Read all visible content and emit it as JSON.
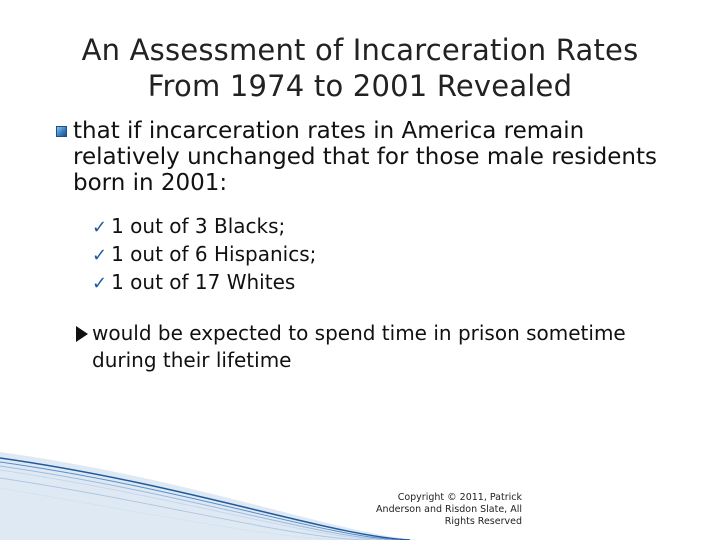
{
  "title": {
    "line1": "An Assessment of Incarceration Rates",
    "line2": "From 1974 to 2001 Revealed"
  },
  "main_bullet": {
    "text": "that if incarceration rates in America remain relatively unchanged that for those male residents born in 2001:"
  },
  "check_items": [
    "1 out of 3 Blacks;",
    "1 out of 6 Hispanics;",
    "1 out of 17 Whites"
  ],
  "check_icon": "ü",
  "arrow_item": {
    "text": "would be expected to spend time in prison sometime during their lifetime"
  },
  "copyright": {
    "text": "Copyright © 2011, Patrick Anderson and Risdon Slate, All Rights Reserved"
  },
  "colors": {
    "accent_blue": "#1f5aa0",
    "bullet_blue": "#3a7fc0",
    "text": "#111111"
  }
}
